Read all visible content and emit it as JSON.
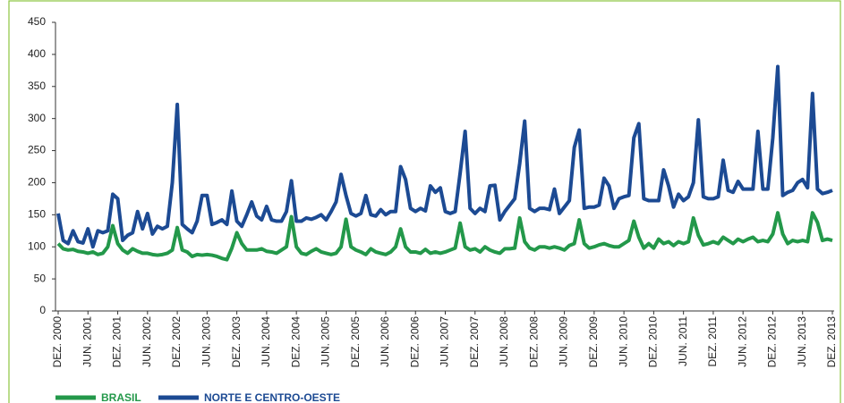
{
  "chart_data": {
    "type": "line",
    "categories": [
      "DEZ. 2000",
      null,
      null,
      null,
      null,
      null,
      "JUN. 2001",
      null,
      null,
      null,
      null,
      null,
      "DEZ. 2001",
      null,
      null,
      null,
      null,
      null,
      "JUN. 2002",
      null,
      null,
      null,
      null,
      null,
      "DEZ. 2002",
      null,
      null,
      null,
      null,
      null,
      "JUN. 2003",
      null,
      null,
      null,
      null,
      null,
      "DEZ. 2003",
      null,
      null,
      null,
      null,
      null,
      "JUN. 2004",
      null,
      null,
      null,
      null,
      null,
      "DEZ. 2004",
      null,
      null,
      null,
      null,
      null,
      "JUN. 2005",
      null,
      null,
      null,
      null,
      null,
      "DEZ. 2005",
      null,
      null,
      null,
      null,
      null,
      "JUN. 2006",
      null,
      null,
      null,
      null,
      null,
      "DEZ. 2006",
      null,
      null,
      null,
      null,
      null,
      "JUN. 2007",
      null,
      null,
      null,
      null,
      null,
      "DEZ. 2007",
      null,
      null,
      null,
      null,
      null,
      "JUN. 2008",
      null,
      null,
      null,
      null,
      null,
      "DEZ. 2008",
      null,
      null,
      null,
      null,
      null,
      "JUN. 2009",
      null,
      null,
      null,
      null,
      null,
      "DEZ. 2009",
      null,
      null,
      null,
      null,
      null,
      "JUN. 2010",
      null,
      null,
      null,
      null,
      null,
      "DEZ. 2010",
      null,
      null,
      null,
      null,
      null,
      "JUN. 2011",
      null,
      null,
      null,
      null,
      null,
      "DEZ. 2011",
      null,
      null,
      null,
      null,
      null,
      "JUN. 2012",
      null,
      null,
      null,
      null,
      null,
      "DEZ. 2012",
      null,
      null,
      null,
      null,
      null,
      "JUN. 2013",
      null,
      null,
      null,
      null,
      null,
      "DEZ. 2013"
    ],
    "series": [
      {
        "name": "BRASIL",
        "color": "#23984a",
        "values": [
          105,
          97,
          95,
          96,
          93,
          92,
          90,
          92,
          88,
          90,
          100,
          133,
          105,
          95,
          90,
          97,
          93,
          90,
          90,
          88,
          87,
          88,
          90,
          95,
          130,
          95,
          92,
          85,
          88,
          87,
          88,
          87,
          85,
          82,
          80,
          98,
          122,
          105,
          95,
          95,
          95,
          97,
          93,
          92,
          90,
          95,
          100,
          147,
          100,
          90,
          88,
          93,
          97,
          92,
          90,
          88,
          90,
          100,
          143,
          100,
          95,
          92,
          88,
          97,
          92,
          90,
          88,
          92,
          100,
          128,
          100,
          92,
          92,
          90,
          96,
          90,
          92,
          90,
          92,
          95,
          98,
          137,
          100,
          95,
          97,
          92,
          100,
          95,
          92,
          90,
          97,
          97,
          98,
          145,
          108,
          98,
          95,
          100,
          100,
          98,
          100,
          98,
          95,
          102,
          105,
          142,
          105,
          98,
          100,
          103,
          105,
          102,
          100,
          100,
          105,
          110,
          140,
          115,
          98,
          105,
          98,
          112,
          105,
          108,
          102,
          108,
          105,
          108,
          145,
          118,
          103,
          105,
          108,
          105,
          115,
          110,
          105,
          112,
          108,
          112,
          115,
          108,
          110,
          108,
          120,
          153,
          120,
          105,
          110,
          108,
          110,
          108,
          153,
          138,
          110,
          112,
          110
        ]
      },
      {
        "name": "NORTE E CENTRO-OESTE",
        "color": "#1c4a93",
        "values": [
          152,
          110,
          105,
          125,
          108,
          106,
          128,
          100,
          125,
          122,
          125,
          182,
          175,
          110,
          118,
          122,
          155,
          128,
          152,
          120,
          132,
          128,
          132,
          200,
          322,
          135,
          128,
          122,
          140,
          180,
          180,
          135,
          138,
          142,
          135,
          187,
          140,
          132,
          150,
          170,
          148,
          142,
          163,
          142,
          140,
          140,
          155,
          203,
          140,
          140,
          145,
          143,
          146,
          150,
          142,
          155,
          170,
          213,
          180,
          152,
          148,
          152,
          180,
          150,
          148,
          158,
          150,
          155,
          155,
          225,
          205,
          160,
          155,
          160,
          156,
          195,
          185,
          192,
          155,
          152,
          155,
          215,
          280,
          160,
          152,
          160,
          155,
          195,
          196,
          142,
          155,
          165,
          175,
          230,
          296,
          160,
          155,
          160,
          160,
          158,
          190,
          152,
          162,
          172,
          255,
          282,
          160,
          162,
          162,
          165,
          207,
          195,
          160,
          175,
          178,
          180,
          270,
          292,
          175,
          172,
          172,
          172,
          220,
          195,
          162,
          182,
          172,
          178,
          200,
          298,
          178,
          175,
          175,
          178,
          235,
          188,
          185,
          202,
          190,
          190,
          190,
          280,
          190,
          190,
          270,
          381,
          180,
          185,
          188,
          200,
          205,
          192,
          339,
          190,
          183,
          185,
          188
        ]
      }
    ],
    "ylim": [
      0,
      450
    ],
    "yticks": [
      0,
      50,
      100,
      150,
      200,
      250,
      300,
      350,
      400,
      450
    ],
    "grid": false
  }
}
